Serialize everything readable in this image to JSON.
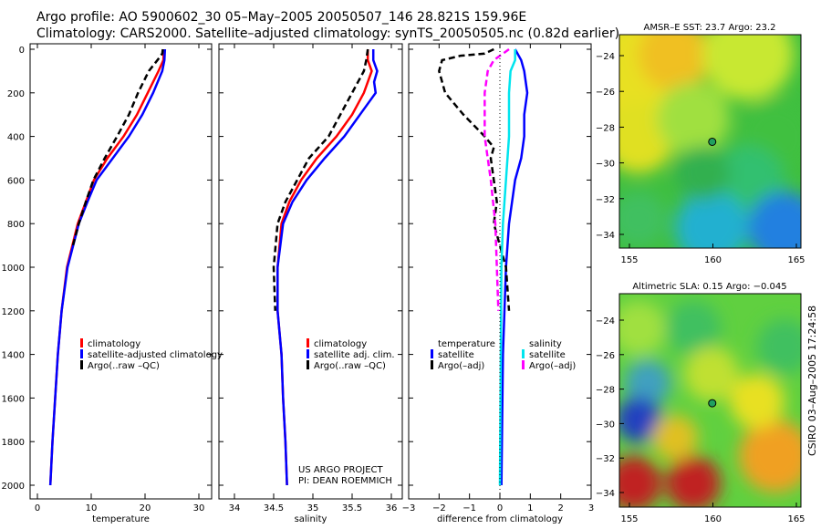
{
  "header": {
    "line1": "Argo profile: AO 5900602_30 05–May–2005 20050507_146 28.821S 159.96E",
    "line2": "Climatology: CARS2000. Satellite–adjusted climatology: synTS_20050505.nc (0.82d earlier)"
  },
  "side_label": "CSIRO 03–Aug–2005 17:24:58",
  "colors": {
    "climatology": "#ff0000",
    "satellite": "#0000ff",
    "argo": "#000000",
    "sal_satellite": "#00e5ee",
    "sal_argo": "#ff00ff"
  },
  "chart_data": [
    {
      "type": "line",
      "xlabel": "temperature",
      "ylabel": "",
      "xlim": [
        -1,
        32
      ],
      "ylim": [
        2000,
        0
      ],
      "xticks": [
        "0",
        "10",
        "20",
        "30"
      ],
      "yticks": [
        "0",
        "200",
        "400",
        "600",
        "800",
        "1000",
        "1200",
        "1400",
        "1600",
        "1800",
        "2000"
      ],
      "legend": [
        "climatology",
        "satellite-adjusted climatology",
        "Argo(..raw –QC)"
      ],
      "series": [
        {
          "name": "climatology",
          "color": "#ff0000",
          "dash": false,
          "depth": [
            0,
            50,
            100,
            200,
            300,
            400,
            500,
            600,
            700,
            800,
            1000,
            1200,
            1400,
            1600,
            1800,
            2000
          ],
          "values": [
            23.5,
            23.4,
            22.5,
            20.5,
            18.5,
            16,
            13,
            10.5,
            9,
            7.5,
            5.5,
            4.5,
            3.8,
            3.3,
            2.8,
            2.4
          ]
        },
        {
          "name": "satellite-adjusted climatology",
          "color": "#0000ff",
          "dash": false,
          "depth": [
            0,
            50,
            100,
            200,
            300,
            400,
            500,
            600,
            700,
            800,
            1000,
            1200,
            1400,
            1600,
            1800,
            2000
          ],
          "values": [
            23.7,
            23.6,
            23.2,
            21.5,
            19.5,
            17,
            14,
            11,
            9.3,
            7.7,
            5.6,
            4.5,
            3.8,
            3.3,
            2.8,
            2.4
          ]
        },
        {
          "name": "Argo(..raw -QC)",
          "color": "#000000",
          "dash": true,
          "depth": [
            0,
            20,
            50,
            100,
            200,
            300,
            400,
            500,
            600,
            700,
            800,
            900
          ],
          "values": [
            23.3,
            23.2,
            22.3,
            20.7,
            18.7,
            17,
            14.8,
            12.5,
            10.4,
            9,
            7.7,
            6.6
          ]
        }
      ]
    },
    {
      "type": "line",
      "xlabel": "salinity",
      "xlim": [
        33.8,
        36.05
      ],
      "ylim": [
        2000,
        0
      ],
      "xticks": [
        "34",
        "34.5",
        "35",
        "35.5",
        "36"
      ],
      "legend": [
        "climatology",
        "satellite adj. clim.",
        "Argo(..raw –QC)"
      ],
      "annotation": [
        "US ARGO PROJECT",
        "PI: DEAN ROEMMICH"
      ],
      "series": [
        {
          "name": "climatology",
          "color": "#ff0000",
          "dash": false,
          "depth": [
            0,
            50,
            100,
            150,
            200,
            300,
            400,
            500,
            600,
            700,
            800,
            1000,
            1200,
            1400,
            1600,
            1800,
            2000
          ],
          "values": [
            35.7,
            35.7,
            35.75,
            35.7,
            35.65,
            35.5,
            35.3,
            35.05,
            34.85,
            34.7,
            34.6,
            34.55,
            34.55,
            34.6,
            34.62,
            34.65,
            34.67
          ]
        },
        {
          "name": "satellite adj. clim.",
          "color": "#0000ff",
          "dash": false,
          "depth": [
            0,
            50,
            100,
            150,
            200,
            300,
            400,
            500,
            600,
            700,
            800,
            1000,
            1200,
            1400,
            1600,
            1800,
            2000
          ],
          "values": [
            35.77,
            35.77,
            35.82,
            35.78,
            35.8,
            35.6,
            35.4,
            35.15,
            34.92,
            34.74,
            34.62,
            34.55,
            34.55,
            34.6,
            34.62,
            34.65,
            34.67
          ]
        },
        {
          "name": "Argo(..raw -QC)",
          "color": "#000000",
          "dash": true,
          "depth": [
            0,
            50,
            100,
            200,
            300,
            400,
            500,
            600,
            700,
            800,
            1000,
            1200
          ],
          "values": [
            35.7,
            35.68,
            35.65,
            35.5,
            35.35,
            35.2,
            34.95,
            34.8,
            34.65,
            34.55,
            34.5,
            34.52
          ]
        }
      ]
    },
    {
      "type": "line",
      "xlabel": "difference from climatology",
      "xlim": [
        -3,
        3
      ],
      "ylim": [
        2000,
        0
      ],
      "xticks": [
        "−3",
        "−2",
        "−1",
        "0",
        "1",
        "2",
        "3"
      ],
      "legend_left": [
        "temperature",
        "satellite",
        "Argo(–adj)"
      ],
      "legend_right": [
        "salinity",
        "satellite",
        "Argo(–adj)"
      ],
      "series": [
        {
          "name": "temperature satellite",
          "color": "#0000ff",
          "dash": false,
          "depth": [
            0,
            50,
            100,
            200,
            300,
            400,
            500,
            600,
            800,
            1000,
            1400,
            2000
          ],
          "values": [
            0.5,
            0.7,
            0.8,
            0.9,
            0.8,
            0.8,
            0.7,
            0.5,
            0.3,
            0.2,
            0.1,
            0.05
          ]
        },
        {
          "name": "temperature Argo(-adj)",
          "color": "#000000",
          "dash": true,
          "depth": [
            0,
            20,
            30,
            50,
            100,
            200,
            300,
            400,
            450,
            500,
            600,
            700,
            800,
            1000,
            1200
          ],
          "values": [
            -0.2,
            -0.5,
            -1.3,
            -1.9,
            -2.0,
            -1.8,
            -1.2,
            -0.5,
            -0.2,
            -0.3,
            -0.2,
            -0.1,
            -0.2,
            0.2,
            0.3
          ]
        },
        {
          "name": "salinity satellite",
          "color": "#00e5ee",
          "dash": false,
          "depth": [
            0,
            50,
            100,
            200,
            400,
            600,
            800,
            1000,
            2000
          ],
          "values": [
            0.5,
            0.5,
            0.35,
            0.3,
            0.3,
            0.2,
            0.1,
            0.05,
            0
          ]
        },
        {
          "name": "salinity Argo(-adj)",
          "color": "#ff00ff",
          "dash": true,
          "depth": [
            0,
            50,
            100,
            200,
            400,
            600,
            800,
            1000,
            1200
          ],
          "values": [
            0.3,
            -0.2,
            -0.4,
            -0.5,
            -0.5,
            -0.3,
            -0.15,
            -0.1,
            -0.05
          ]
        }
      ]
    },
    {
      "type": "heatmap",
      "title": "AMSR–E SST: 23.7 Argo: 23.2",
      "xticks": [
        "155",
        "160",
        "165"
      ],
      "yticks": [
        "−24",
        "−26",
        "−28",
        "−30",
        "−32",
        "−34"
      ],
      "marker": {
        "lon": 159.96,
        "lat": -28.821
      }
    },
    {
      "type": "heatmap",
      "title": "Altimetric SLA: 0.15 Argo: −0.045",
      "xticks": [
        "155",
        "160",
        "165"
      ],
      "yticks": [
        "−24",
        "−26",
        "−28",
        "−30",
        "−32",
        "−34"
      ],
      "marker": {
        "lon": 159.96,
        "lat": -28.821
      }
    }
  ]
}
